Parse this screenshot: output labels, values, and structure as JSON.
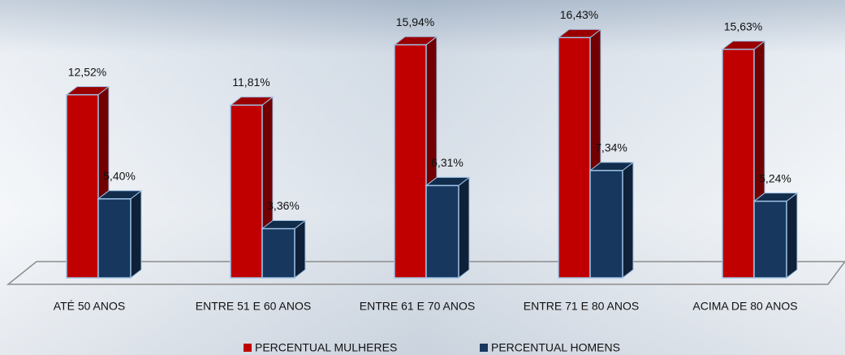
{
  "chart_data": {
    "type": "bar3d",
    "categories": [
      "ATÉ 50 ANOS",
      "ENTRE 51 E 60 ANOS",
      "ENTRE 61 E 70 ANOS",
      "ENTRE 71 E 80 ANOS",
      "ACIMA DE 80 ANOS"
    ],
    "series": [
      {
        "name": "PERCENTUAL MULHERES",
        "color": "#c00000",
        "values": [
          12.52,
          11.81,
          15.94,
          16.43,
          15.63
        ],
        "value_labels": [
          "12,52%",
          "11,81%",
          "15,94%",
          "16,43%",
          "15,63%"
        ]
      },
      {
        "name": "PERCENTUAL HOMENS",
        "color": "#17375e",
        "values": [
          5.4,
          3.36,
          6.31,
          7.34,
          5.24
        ],
        "value_labels": [
          "5,40%",
          "3,36%",
          "6,31%",
          "7,34%",
          "5,24%"
        ]
      }
    ],
    "legend": "bottom"
  }
}
